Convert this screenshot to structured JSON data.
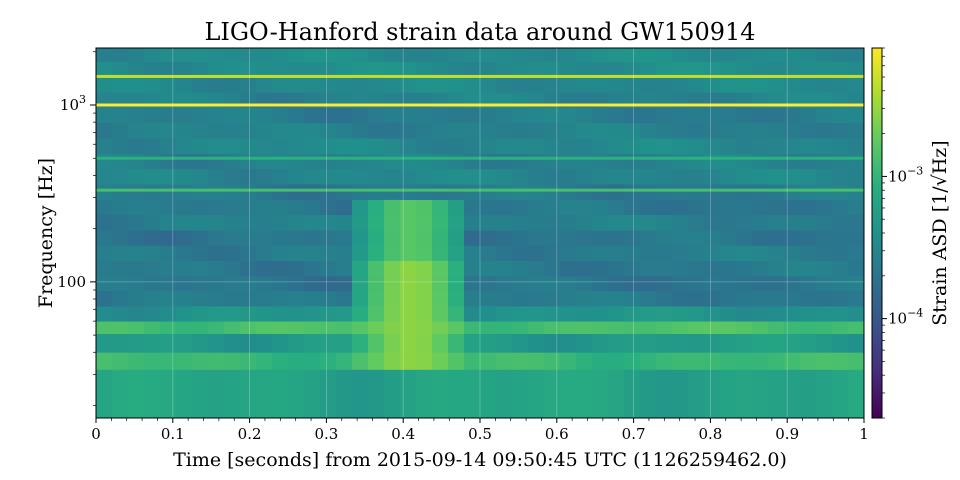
{
  "chart_data": {
    "type": "heatmap",
    "title": "LIGO-Hanford strain data around GW150914",
    "xlabel": "Time [seconds] from 2015-09-14 09:50:45 UTC (1126259462.0)",
    "ylabel": "Frequency [Hz]",
    "colorbar_label": "Strain ASD [1/√Hz]",
    "colormap": "viridis",
    "xlim": [
      0,
      1
    ],
    "ylim": [
      17,
      2100
    ],
    "yscale": "log",
    "color_scale": "log",
    "color_range": [
      2e-05,
      0.008
    ],
    "grid": true,
    "x_ticks": [
      {
        "value": 0,
        "label": "0"
      },
      {
        "value": 0.1,
        "label": "0.1"
      },
      {
        "value": 0.2,
        "label": "0.2"
      },
      {
        "value": 0.3,
        "label": "0.3"
      },
      {
        "value": 0.4,
        "label": "0.4"
      },
      {
        "value": 0.5,
        "label": "0.5"
      },
      {
        "value": 0.6,
        "label": "0.6"
      },
      {
        "value": 0.7,
        "label": "0.7"
      },
      {
        "value": 0.8,
        "label": "0.8"
      },
      {
        "value": 0.9,
        "label": "0.9"
      },
      {
        "value": 1,
        "label": "1"
      }
    ],
    "y_ticks": [
      {
        "value": 100,
        "label": "100"
      },
      {
        "value": 1000,
        "label": "10",
        "exponent": "3"
      }
    ],
    "colorbar_ticks": [
      {
        "value": 0.001,
        "label": "10",
        "exponent": "−3"
      },
      {
        "value": 0.0001,
        "label": "10",
        "exponent": "−4"
      }
    ],
    "frequency_bands": [
      {
        "f_low": 17,
        "f_high": 32,
        "asd": 0.00063
      },
      {
        "f_low": 32,
        "f_high": 40,
        "asd": 0.0011
      },
      {
        "f_low": 40,
        "f_high": 51,
        "asd": 0.00051
      },
      {
        "f_low": 51,
        "f_high": 60,
        "asd": 0.00135
      },
      {
        "f_low": 60,
        "f_high": 73,
        "asd": 0.00042
      },
      {
        "f_low": 73,
        "f_high": 89,
        "asd": 0.00023
      },
      {
        "f_low": 89,
        "f_high": 108,
        "asd": 0.00021
      },
      {
        "f_low": 108,
        "f_high": 132,
        "asd": 0.00023
      },
      {
        "f_low": 132,
        "f_high": 161,
        "asd": 0.00025
      },
      {
        "f_low": 161,
        "f_high": 196,
        "asd": 0.00021
      },
      {
        "f_low": 196,
        "f_high": 240,
        "asd": 0.00026
      },
      {
        "f_low": 240,
        "f_high": 292,
        "asd": 0.00022
      },
      {
        "f_low": 292,
        "f_high": 357,
        "asd": 0.00023
      },
      {
        "f_low": 357,
        "f_high": 436,
        "asd": 0.00031
      },
      {
        "f_low": 436,
        "f_high": 532,
        "asd": 0.00028
      },
      {
        "f_low": 532,
        "f_high": 650,
        "asd": 0.00032
      },
      {
        "f_low": 650,
        "f_high": 793,
        "asd": 0.00027
      },
      {
        "f_low": 793,
        "f_high": 968,
        "asd": 0.00025
      },
      {
        "f_low": 968,
        "f_high": 1181,
        "asd": 0.00029
      },
      {
        "f_low": 1181,
        "f_high": 1442,
        "asd": 0.00033
      },
      {
        "f_low": 1442,
        "f_high": 1760,
        "asd": 0.00036
      },
      {
        "f_low": 1760,
        "f_high": 2100,
        "asd": 0.00035
      }
    ],
    "spectral_lines": [
      {
        "frequency": 330,
        "asd": 0.0013
      },
      {
        "frequency": 500,
        "asd": 0.0009
      },
      {
        "frequency": 1000,
        "asd": 0.008
      },
      {
        "frequency": 1450,
        "asd": 0.0045
      }
    ],
    "transient": {
      "t_start": 0.34,
      "t_peak": 0.41,
      "t_end": 0.47,
      "f_start": 35,
      "f_end": 300,
      "peak_asd": 0.0028
    }
  }
}
